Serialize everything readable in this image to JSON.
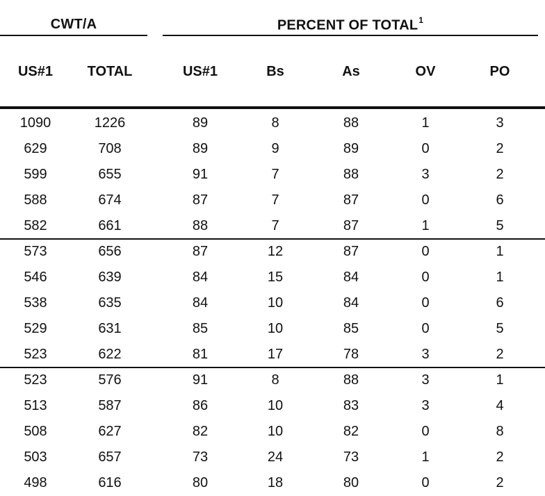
{
  "header": {
    "cwt_group": "CWT/A",
    "percent_group": "PERCENT OF TOTAL",
    "percent_footnote": "1"
  },
  "columns": [
    "US#1",
    "TOTAL",
    "US#1",
    "Bs",
    "As",
    "OV",
    "PO"
  ],
  "rows": [
    [
      "1090",
      "1226",
      "89",
      "8",
      "88",
      "1",
      "3"
    ],
    [
      "629",
      "708",
      "89",
      "9",
      "89",
      "0",
      "2"
    ],
    [
      "599",
      "655",
      "91",
      "7",
      "88",
      "3",
      "2"
    ],
    [
      "588",
      "674",
      "87",
      "7",
      "87",
      "0",
      "6"
    ],
    [
      "582",
      "661",
      "88",
      "7",
      "87",
      "1",
      "5"
    ],
    [
      "573",
      "656",
      "87",
      "12",
      "87",
      "0",
      "1"
    ],
    [
      "546",
      "639",
      "84",
      "15",
      "84",
      "0",
      "1"
    ],
    [
      "538",
      "635",
      "84",
      "10",
      "84",
      "0",
      "6"
    ],
    [
      "529",
      "631",
      "85",
      "10",
      "85",
      "0",
      "5"
    ],
    [
      "523",
      "622",
      "81",
      "17",
      "78",
      "3",
      "2"
    ],
    [
      "523",
      "576",
      "91",
      "8",
      "88",
      "3",
      "1"
    ],
    [
      "513",
      "587",
      "86",
      "10",
      "83",
      "3",
      "4"
    ],
    [
      "508",
      "627",
      "82",
      "10",
      "82",
      "0",
      "8"
    ],
    [
      "503",
      "657",
      "73",
      "24",
      "73",
      "1",
      "2"
    ],
    [
      "498",
      "616",
      "80",
      "18",
      "80",
      "0",
      "2"
    ]
  ]
}
